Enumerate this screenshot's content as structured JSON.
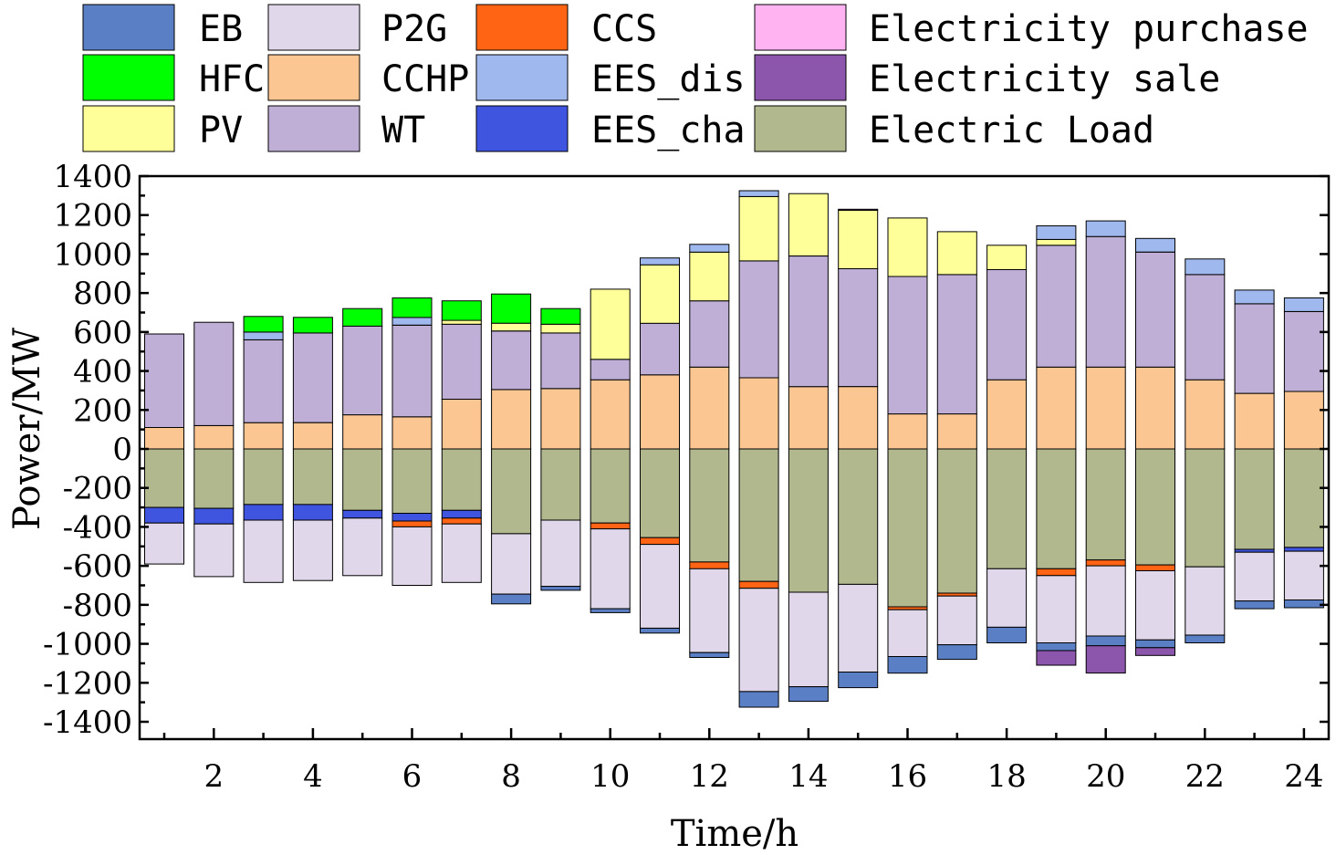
{
  "chart_data": {
    "type": "bar",
    "subtype": "stacked",
    "title": "",
    "xlabel": "Time/h",
    "ylabel": "Power/MW",
    "ylim": [
      -1400,
      1400
    ],
    "xlim": [
      0.5,
      24.5
    ],
    "x_ticks": [
      2,
      4,
      6,
      8,
      10,
      12,
      14,
      16,
      18,
      20,
      22,
      24
    ],
    "y_ticks": [
      -1400,
      -1200,
      -1000,
      -800,
      -600,
      -400,
      -200,
      0,
      200,
      400,
      600,
      800,
      1000,
      1200,
      1400
    ],
    "categories": [
      1,
      2,
      3,
      4,
      5,
      6,
      7,
      8,
      9,
      10,
      11,
      12,
      13,
      14,
      15,
      16,
      17,
      18,
      19,
      20,
      21,
      22,
      23,
      24
    ],
    "stack_order_positive": [
      "CCHP",
      "WT",
      "PV",
      "EES_dis",
      "HFC",
      "Electricity purchase"
    ],
    "stack_order_negative": [
      "Electric Load",
      "EES_cha",
      "CCS",
      "P2G",
      "EB",
      "Electricity sale"
    ],
    "series": [
      {
        "name": "EB",
        "color": "#5b7fc4",
        "values": [
          0,
          0,
          0,
          0,
          0,
          0,
          0,
          -50,
          -20,
          -20,
          -25,
          -25,
          -80,
          -75,
          -80,
          -85,
          -75,
          -80,
          -40,
          -50,
          -40,
          -40,
          -40,
          -40
        ]
      },
      {
        "name": "P2G",
        "color": "#e0d8ea",
        "values": [
          -210,
          -270,
          -320,
          -310,
          -295,
          -300,
          -300,
          -310,
          -340,
          -410,
          -430,
          -430,
          -530,
          -485,
          -450,
          -240,
          -250,
          -300,
          -345,
          -360,
          -355,
          -350,
          -250,
          -250
        ]
      },
      {
        "name": "CCS",
        "color": "#ff6414",
        "values": [
          0,
          0,
          0,
          0,
          0,
          -30,
          -30,
          0,
          0,
          -30,
          -35,
          -35,
          -35,
          0,
          0,
          -15,
          -15,
          0,
          -35,
          -30,
          -30,
          0,
          0,
          0
        ]
      },
      {
        "name": "Electricity purchase",
        "color": "#ffb3f0",
        "values": [
          0,
          0,
          0,
          0,
          0,
          0,
          0,
          0,
          0,
          0,
          0,
          0,
          0,
          0,
          5,
          0,
          0,
          0,
          0,
          0,
          0,
          0,
          0,
          0
        ]
      },
      {
        "name": "HFC",
        "color": "#00ff00",
        "values": [
          0,
          0,
          80,
          80,
          90,
          100,
          100,
          150,
          80,
          0,
          0,
          0,
          0,
          0,
          0,
          0,
          0,
          0,
          0,
          0,
          0,
          0,
          0,
          0
        ]
      },
      {
        "name": "CCHP",
        "color": "#fcc693",
        "values": [
          110,
          120,
          135,
          135,
          175,
          165,
          255,
          305,
          310,
          355,
          380,
          420,
          365,
          320,
          320,
          180,
          180,
          355,
          420,
          420,
          420,
          355,
          285,
          295
        ]
      },
      {
        "name": "EES_dis",
        "color": "#9fb8ee",
        "values": [
          0,
          0,
          40,
          0,
          0,
          40,
          0,
          0,
          0,
          0,
          35,
          40,
          30,
          0,
          0,
          0,
          0,
          0,
          70,
          80,
          70,
          80,
          70,
          70
        ]
      },
      {
        "name": "Electricity sale",
        "color": "#8b56ab",
        "values": [
          0,
          0,
          0,
          0,
          0,
          0,
          0,
          0,
          0,
          0,
          0,
          0,
          0,
          0,
          0,
          0,
          0,
          0,
          -75,
          -140,
          -40,
          0,
          0,
          0
        ]
      },
      {
        "name": "PV",
        "color": "#ffff99",
        "values": [
          0,
          0,
          0,
          0,
          0,
          0,
          20,
          40,
          45,
          360,
          300,
          250,
          330,
          320,
          300,
          300,
          220,
          125,
          30,
          0,
          0,
          0,
          0,
          0
        ]
      },
      {
        "name": "WT",
        "color": "#bfafd6",
        "values": [
          480,
          530,
          425,
          460,
          455,
          470,
          385,
          300,
          285,
          105,
          265,
          340,
          600,
          670,
          605,
          705,
          715,
          565,
          625,
          670,
          590,
          540,
          460,
          410
        ]
      },
      {
        "name": "EES_cha",
        "color": "#3f55e0",
        "values": [
          -80,
          -80,
          -80,
          -80,
          -40,
          -40,
          -40,
          0,
          0,
          0,
          0,
          0,
          0,
          0,
          0,
          0,
          0,
          0,
          0,
          0,
          0,
          0,
          -15,
          -20
        ]
      },
      {
        "name": "Electric Load",
        "color": "#b1b88e",
        "values": [
          -300,
          -305,
          -285,
          -285,
          -315,
          -330,
          -315,
          -435,
          -365,
          -380,
          -455,
          -580,
          -680,
          -735,
          -695,
          -810,
          -740,
          -615,
          -615,
          -570,
          -595,
          -605,
          -515,
          -505
        ]
      }
    ]
  },
  "legend": {
    "items": [
      "EB",
      "P2G",
      "CCS",
      "Electricity purchase",
      "HFC",
      "CCHP",
      "EES_dis",
      "Electricity sale",
      "PV",
      "WT",
      "EES_cha",
      "Electric Load"
    ]
  }
}
